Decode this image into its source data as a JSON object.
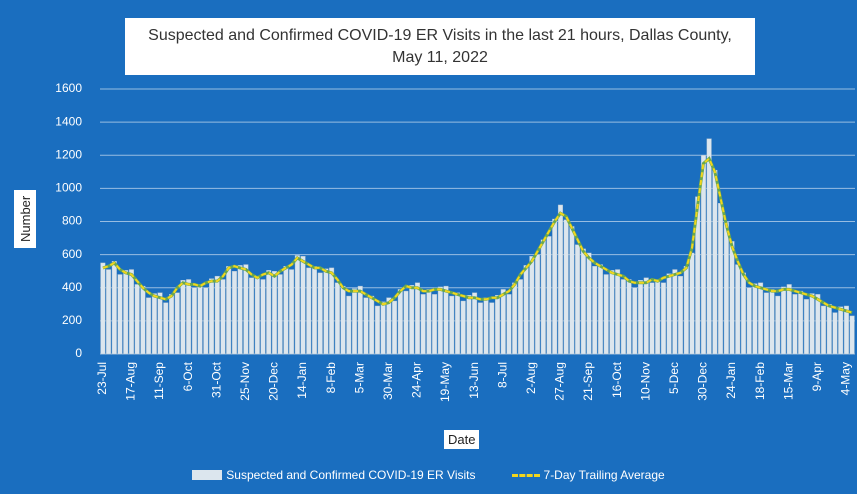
{
  "chart_data": {
    "type": "bar",
    "title": "Suspected and Confirmed COVID-19 ER Visits in the last 21 hours, Dallas County, May 11, 2022",
    "x_label": "Date",
    "y_label": "Number",
    "ylim": [
      0,
      1600
    ],
    "yticks": [
      0,
      200,
      400,
      600,
      800,
      1000,
      1200,
      1400,
      1600
    ],
    "grid": true,
    "legend": "bottom",
    "categories": [
      "23-Jul",
      null,
      null,
      null,
      null,
      "17-Aug",
      null,
      null,
      null,
      null,
      "11-Sep",
      null,
      null,
      null,
      null,
      "6-Oct",
      null,
      null,
      null,
      null,
      "31-Oct",
      null,
      null,
      null,
      null,
      "25-Nov",
      null,
      null,
      null,
      null,
      "20-Dec",
      null,
      null,
      null,
      null,
      "14-Jan",
      null,
      null,
      null,
      null,
      "8-Feb",
      null,
      null,
      null,
      null,
      "5-Mar",
      null,
      null,
      null,
      null,
      "30-Mar",
      null,
      null,
      null,
      null,
      "24-Apr",
      null,
      null,
      null,
      null,
      "19-May",
      null,
      null,
      null,
      null,
      "13-Jun",
      null,
      null,
      null,
      null,
      "8-Jul",
      null,
      null,
      null,
      null,
      "2-Aug",
      null,
      null,
      null,
      null,
      "27-Aug",
      null,
      null,
      null,
      null,
      "21-Sep",
      null,
      null,
      null,
      null,
      "16-Oct",
      null,
      null,
      null,
      null,
      "10-Nov",
      null,
      null,
      null,
      null,
      "5-Dec",
      null,
      null,
      null,
      null,
      "30-Dec",
      null,
      null,
      null,
      null,
      "24-Jan",
      null,
      null,
      null,
      null,
      "18-Feb",
      null,
      null,
      null,
      null,
      "15-Mar",
      null,
      null,
      null,
      null,
      "9-Apr",
      null,
      null,
      null,
      null,
      "4-May",
      null
    ],
    "series": [
      {
        "name": "Suspected and Confirmed COVID-19 ER Visits",
        "type": "bar",
        "color": "#dce6ee",
        "values": [
          550,
          510,
          560,
          480,
          505,
          510,
          420,
          410,
          340,
          365,
          370,
          310,
          360,
          370,
          445,
          450,
          400,
          420,
          400,
          455,
          470,
          450,
          530,
          500,
          535,
          540,
          460,
          470,
          450,
          505,
          500,
          480,
          530,
          510,
          595,
          590,
          520,
          530,
          490,
          515,
          520,
          430,
          410,
          350,
          395,
          410,
          340,
          350,
          290,
          315,
          340,
          320,
          390,
          380,
          415,
          430,
          360,
          390,
          360,
          405,
          410,
          350,
          370,
          320,
          355,
          370,
          310,
          340,
          310,
          355,
          390,
          360,
          430,
          450,
          535,
          590,
          600,
          690,
          710,
          815,
          900,
          810,
          770,
          660,
          635,
          610,
          530,
          540,
          480,
          505,
          510,
          450,
          450,
          400,
          445,
          460,
          430,
          450,
          430,
          485,
          510,
          470,
          530,
          610,
          950,
          1200,
          1300,
          1110,
          910,
          795,
          680,
          540,
          490,
          400,
          425,
          430,
          370,
          390,
          350,
          405,
          420,
          360,
          380,
          330,
          365,
          360,
          290,
          300,
          250,
          285,
          290,
          230
        ]
      },
      {
        "name": "7-Day Trailing Average",
        "type": "line",
        "color": "#f2d61e",
        "values": [
          520,
          530,
          550,
          510,
          490,
          480,
          440,
          400,
          370,
          350,
          340,
          330,
          350,
          400,
          430,
          420,
          420,
          410,
          430,
          440,
          440,
          470,
          520,
          530,
          520,
          510,
          480,
          460,
          480,
          490,
          470,
          500,
          520,
          540,
          580,
          560,
          540,
          520,
          520,
          500,
          490,
          450,
          400,
          380,
          380,
          380,
          360,
          340,
          320,
          300,
          310,
          340,
          380,
          410,
          400,
          400,
          380,
          380,
          390,
          390,
          380,
          370,
          360,
          350,
          340,
          340,
          330,
          330,
          340,
          340,
          360,
          380,
          420,
          480,
          520,
          560,
          620,
          680,
          740,
          800,
          850,
          830,
          760,
          690,
          620,
          580,
          550,
          530,
          510,
          490,
          480,
          470,
          440,
          430,
          430,
          430,
          450,
          440,
          460,
          470,
          480,
          490,
          520,
          640,
          900,
          1150,
          1180,
          1100,
          940,
          780,
          650,
          560,
          480,
          430,
          410,
          400,
          390,
          380,
          380,
          390,
          390,
          380,
          370,
          360,
          350,
          330,
          310,
          290,
          280,
          270,
          260,
          250
        ]
      }
    ]
  }
}
